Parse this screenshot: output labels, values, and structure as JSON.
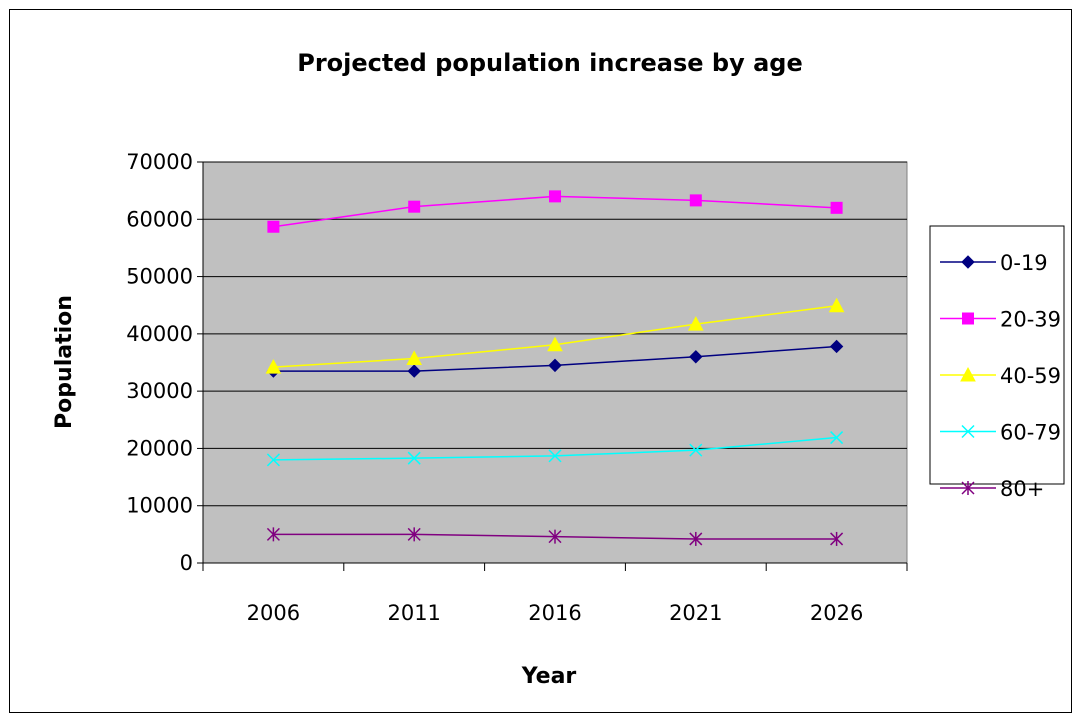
{
  "chart_data": {
    "type": "line",
    "title": "Projected population increase by age",
    "xlabel": "Year",
    "ylabel": "Population",
    "categories": [
      "2006",
      "2011",
      "2016",
      "2021",
      "2026"
    ],
    "ylim": [
      0,
      70000
    ],
    "y_ticks": [
      "0",
      "10000",
      "20000",
      "30000",
      "40000",
      "50000",
      "60000",
      "70000"
    ],
    "grid": true,
    "plot_background": "#C0C0C0",
    "legend_position": "right",
    "series": [
      {
        "name": "0-19",
        "values": [
          33500,
          33500,
          34500,
          36000,
          37800
        ],
        "color": "#000080",
        "marker": "diamond"
      },
      {
        "name": "20-39",
        "values": [
          58700,
          62200,
          64000,
          63300,
          62000
        ],
        "color": "#FF00FF",
        "marker": "square"
      },
      {
        "name": "40-59",
        "values": [
          34200,
          35700,
          38100,
          41700,
          44900
        ],
        "color": "#FFFF00",
        "marker": "triangle"
      },
      {
        "name": "60-79",
        "values": [
          18000,
          18300,
          18700,
          19700,
          21900
        ],
        "color": "#00FFFF",
        "marker": "x"
      },
      {
        "name": "80+",
        "values": [
          5000,
          5000,
          4600,
          4200,
          4200
        ],
        "color": "#800080",
        "marker": "star"
      }
    ]
  }
}
